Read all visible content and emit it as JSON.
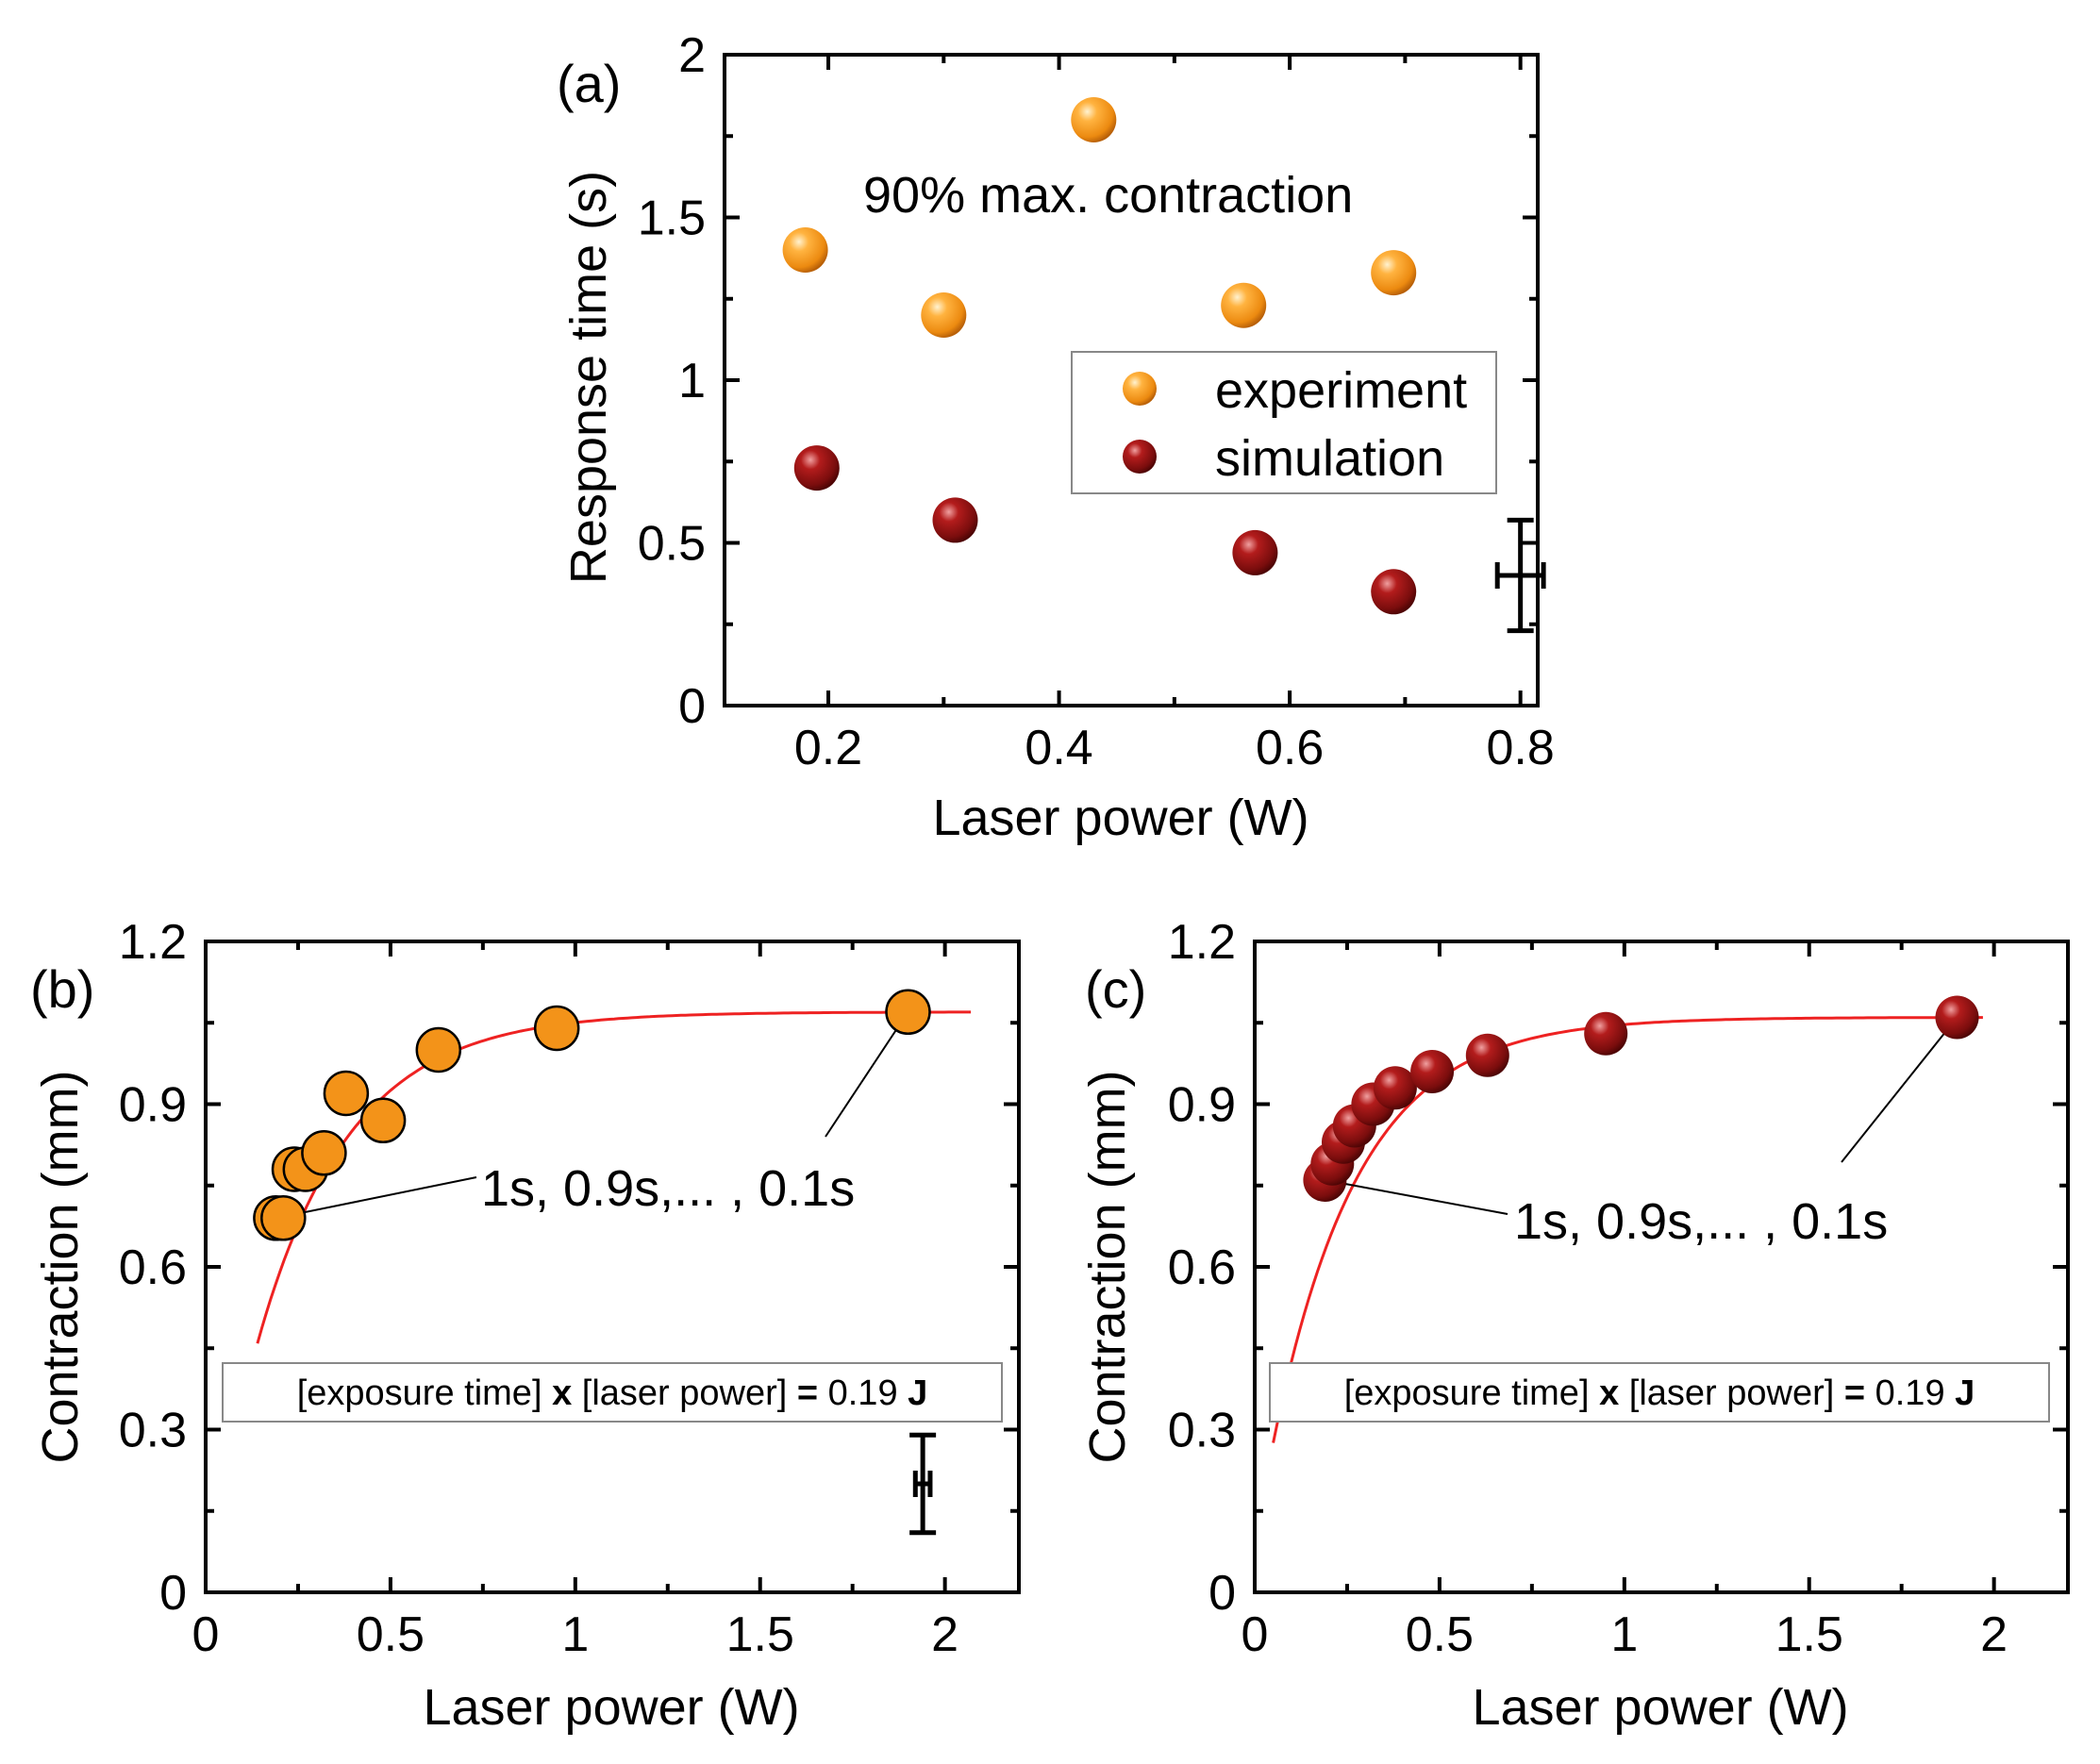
{
  "colors": {
    "experiment": "#f39319",
    "simulation": "#8b1111",
    "fit": "#ee2222"
  },
  "chart_data": [
    {
      "id": "a",
      "type": "scatter",
      "panel_label": "(a)",
      "xlabel": "Laser power (W)",
      "ylabel": "Response time (s)",
      "xlim": [
        0.11,
        0.815
      ],
      "ylim": [
        0,
        2
      ],
      "xticks": [
        0.2,
        0.4,
        0.6,
        0.8
      ],
      "yticks": [
        0,
        0.5,
        1,
        1.5,
        2
      ],
      "xtick_labels": [
        "0.2",
        "0.4",
        "0.6",
        "0.8"
      ],
      "ytick_labels": [
        "0",
        "0.5",
        "1",
        "1.5",
        "2"
      ],
      "annotation": "90% max. contraction",
      "legend": {
        "position": "center-right",
        "entries": [
          "experiment",
          "simulation"
        ]
      },
      "series": [
        {
          "name": "experiment",
          "style": "orange-sphere",
          "x": [
            0.18,
            0.3,
            0.43,
            0.56,
            0.69
          ],
          "y": [
            1.4,
            1.2,
            1.8,
            1.23,
            1.33
          ]
        },
        {
          "name": "simulation",
          "style": "red-sphere",
          "x": [
            0.19,
            0.31,
            0.57,
            0.69
          ],
          "y": [
            0.73,
            0.57,
            0.47,
            0.35
          ]
        }
      ],
      "error_bar": {
        "x": 0.8,
        "y": 0.4,
        "xerr": 0.02,
        "yerr": 0.17
      }
    },
    {
      "id": "b",
      "type": "scatter",
      "panel_label": "(b)",
      "xlabel": "Laser power (W)",
      "ylabel": "Contraction (mm)",
      "xlim": [
        0,
        2.2
      ],
      "ylim": [
        0,
        1.2
      ],
      "xticks": [
        0,
        0.5,
        1,
        1.5,
        2
      ],
      "yticks": [
        0,
        0.3,
        0.6,
        0.9,
        1.2
      ],
      "xtick_labels": [
        "0",
        "0.5",
        "1",
        "1.5",
        "2"
      ],
      "ytick_labels": [
        "0",
        "0.3",
        "0.6",
        "0.9",
        "1.2"
      ],
      "annotation": "1s, 0.9s,... , 0.1s",
      "equation": {
        "part1": "[exposure time] ",
        "op": "x",
        "part2": " [laser power] ",
        "eq": "=",
        "part3": " 0.19 ",
        "unit": "J"
      },
      "series": [
        {
          "name": "experiment",
          "style": "orange-flat",
          "x": [
            0.19,
            0.21,
            0.24,
            0.27,
            0.32,
            0.38,
            0.48,
            0.63,
            0.95,
            1.9
          ],
          "y": [
            0.69,
            0.69,
            0.78,
            0.78,
            0.81,
            0.92,
            0.87,
            1.0,
            1.04,
            1.07
          ]
        },
        {
          "name": "fit",
          "style": "line",
          "asymptote": 1.07,
          "rate": 4.0,
          "offset": 0.0,
          "x_range": [
            0.14,
            2.07
          ]
        }
      ],
      "error_bar": {
        "x": 1.94,
        "y": 0.2,
        "xerr": 0.02,
        "yerr": 0.09
      }
    },
    {
      "id": "c",
      "type": "scatter",
      "panel_label": "(c)",
      "xlabel": "Laser power (W)",
      "ylabel": "Contraction (mm)",
      "xlim": [
        0,
        2.2
      ],
      "ylim": [
        0,
        1.2
      ],
      "xticks": [
        0,
        0.5,
        1,
        1.5,
        2
      ],
      "yticks": [
        0,
        0.3,
        0.6,
        0.9,
        1.2
      ],
      "xtick_labels": [
        "0",
        "0.5",
        "1",
        "1.5",
        "2"
      ],
      "ytick_labels": [
        "0",
        "0.3",
        "0.6",
        "0.9",
        "1.2"
      ],
      "annotation": "1s, 0.9s,... , 0.1s",
      "equation": {
        "part1": "[exposure time] ",
        "op": "x",
        "part2": " [laser power] ",
        "eq": "=",
        "part3": " 0.19 ",
        "unit": "J"
      },
      "series": [
        {
          "name": "simulation",
          "style": "red-sphere",
          "x": [
            0.19,
            0.21,
            0.24,
            0.27,
            0.32,
            0.38,
            0.48,
            0.63,
            0.95,
            1.9
          ],
          "y": [
            0.76,
            0.79,
            0.83,
            0.86,
            0.9,
            0.93,
            0.96,
            0.99,
            1.03,
            1.06
          ]
        },
        {
          "name": "fit",
          "style": "line",
          "asymptote": 1.06,
          "rate": 4.3,
          "offset": -0.02,
          "x_range": [
            0.05,
            1.97
          ]
        }
      ]
    }
  ]
}
